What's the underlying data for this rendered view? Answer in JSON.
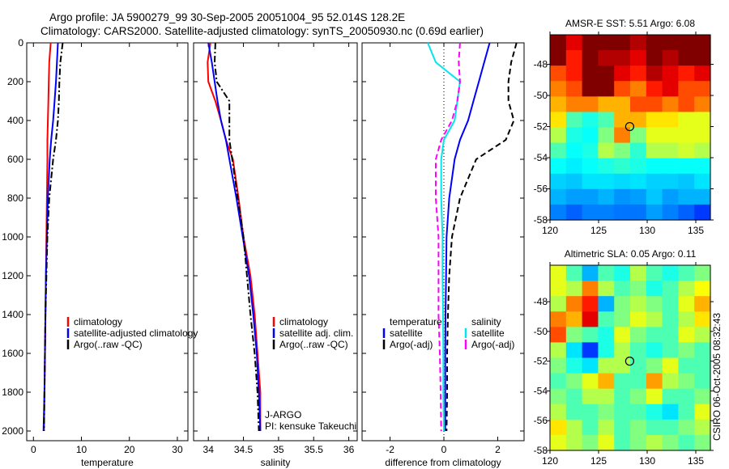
{
  "title": {
    "line1": "Argo profile: JA 5900279_99 30-Sep-2005 20051004_95 52.014S 128.2E",
    "line2": "Climatology: CARS2000. Satellite-adjusted climatology: synTS_20050930.nc (0.69d earlier)"
  },
  "footer_stamp": "CSIRO 06-Oct-2005 08:32:43",
  "colors": {
    "climatology": "#ff0000",
    "satellite": "#0000ff",
    "argo": "#000000",
    "sal_satellite": "#00e5ee",
    "sal_argo": "#ff00ff"
  },
  "chart_data": [
    {
      "type": "line",
      "xlabel": "temperature",
      "ylabel": "",
      "xlim": [
        -1.4,
        32.2
      ],
      "ylim": [
        0,
        2050
      ],
      "y_reversed": true,
      "xticks": [
        0,
        10,
        20,
        30
      ],
      "yticks": [
        0,
        200,
        400,
        600,
        800,
        1000,
        1200,
        1400,
        1600,
        1800,
        2000
      ],
      "depth": [
        0,
        100,
        200,
        300,
        400,
        500,
        600,
        800,
        1000,
        1200,
        1400,
        1600,
        1800,
        2000
      ],
      "series": [
        {
          "name": "climatology",
          "values": [
            3.6,
            3.3,
            3.2,
            3.1,
            3.0,
            2.9,
            2.9,
            2.8,
            2.7,
            2.6,
            2.5,
            2.4,
            2.3,
            2.2
          ]
        },
        {
          "name": "satellite-adjusted climatology",
          "values": [
            5.1,
            4.9,
            4.7,
            4.4,
            4.1,
            3.7,
            3.4,
            3.0,
            2.8,
            2.6,
            2.5,
            2.4,
            2.3,
            2.1
          ]
        },
        {
          "name": "Argo(..raw -QC)",
          "values": [
            6.1,
            5.6,
            5.4,
            5.3,
            5.1,
            4.7,
            4.1,
            3.3,
            2.9,
            2.7,
            2.5,
            2.4,
            2.3,
            2.2
          ]
        }
      ],
      "legend": [
        "climatology",
        "satellite-adjusted climatology",
        "Argo(..raw -QC)"
      ]
    },
    {
      "type": "line",
      "xlabel": "salinity",
      "xlim": [
        33.79,
        36.12
      ],
      "ylim": [
        0,
        2050
      ],
      "y_reversed": true,
      "xticks": [
        34,
        34.5,
        35,
        35.5,
        36
      ],
      "depth": [
        0,
        100,
        200,
        300,
        400,
        500,
        600,
        800,
        1000,
        1200,
        1400,
        1600,
        1800,
        2000
      ],
      "series": [
        {
          "name": "climatology",
          "values": [
            34.03,
            33.99,
            34.0,
            34.1,
            34.18,
            34.25,
            34.35,
            34.43,
            34.5,
            34.6,
            34.66,
            34.7,
            34.74,
            34.74
          ]
        },
        {
          "name": "satellite adj. clim.",
          "values": [
            34.0,
            34.05,
            34.09,
            34.13,
            34.18,
            34.25,
            34.3,
            34.4,
            34.49,
            34.58,
            34.64,
            34.69,
            34.72,
            34.74
          ]
        },
        {
          "name": "Argo(..raw -QC)",
          "values": [
            34.1,
            34.09,
            34.12,
            34.3,
            34.3,
            34.3,
            34.34,
            34.42,
            34.5,
            34.55,
            34.6,
            34.66,
            34.7,
            34.72
          ]
        }
      ],
      "legend": [
        "climatology",
        "satellite adj. clim.",
        "Argo(..raw -QC)"
      ],
      "annotations": [
        "J-ARGO",
        "PI: kensuke Takeuchi"
      ]
    },
    {
      "type": "line",
      "xlabel": "difference from climatology",
      "xlim": [
        -3.04,
        2.98
      ],
      "ylim": [
        0,
        2050
      ],
      "y_reversed": true,
      "xticks": [
        -2,
        0,
        2
      ],
      "depth": [
        0,
        100,
        200,
        300,
        400,
        500,
        600,
        800,
        1000,
        1200,
        1400,
        1600,
        1800,
        2000
      ],
      "series": [
        {
          "name": "temperature satellite",
          "values": [
            1.7,
            1.5,
            1.3,
            1.1,
            0.9,
            0.6,
            0.4,
            0.2,
            0.1,
            0.08,
            0.06,
            0.05,
            0.05,
            0.05
          ]
        },
        {
          "name": "temperature Argo(-adj)",
          "values": [
            2.7,
            2.5,
            2.4,
            2.4,
            2.6,
            2.3,
            1.2,
            0.6,
            0.3,
            0.2,
            0.15,
            0.12,
            0.12,
            0.1
          ]
        },
        {
          "name": "salinity satellite",
          "values": [
            -0.6,
            -0.3,
            0.6,
            0.5,
            0.4,
            0.0,
            -0.1,
            -0.1,
            -0.05,
            -0.05,
            -0.03,
            -0.02,
            -0.02,
            0.0
          ]
        },
        {
          "name": "salinity Argo(-adj)",
          "values": [
            0.6,
            0.55,
            0.6,
            0.5,
            0.3,
            -0.1,
            -0.3,
            -0.3,
            -0.2,
            -0.2,
            -0.2,
            -0.15,
            -0.12,
            -0.1
          ]
        }
      ],
      "legend_headers": [
        "temperature",
        "salinity"
      ],
      "legend": [
        "satellite",
        "Argo(-adj)",
        "satellite",
        "Argo(-adj)"
      ]
    },
    {
      "type": "heatmap",
      "title": "AMSR-E SST: 5.51 Argo: 6.08",
      "xlim": [
        120,
        136.5
      ],
      "ylim": [
        -58,
        -46.1
      ],
      "xticks": [
        120,
        125,
        130,
        135
      ],
      "yticks": [
        -48,
        -50,
        -52,
        -54,
        -56,
        -58
      ],
      "marker": {
        "lon": 128.2,
        "lat": -52.0
      },
      "grid_normalized": [
        [
          1,
          0.9,
          1,
          1,
          1,
          0.95,
          1,
          1,
          1,
          1
        ],
        [
          1,
          0.85,
          1,
          0.95,
          0.95,
          0.9,
          1,
          0.95,
          1,
          1
        ],
        [
          0.8,
          0.85,
          1,
          1,
          0.9,
          0.85,
          0.95,
          0.9,
          0.85,
          0.9
        ],
        [
          0.75,
          0.8,
          1,
          1,
          0.8,
          0.75,
          0.85,
          0.9,
          0.8,
          0.8
        ],
        [
          0.7,
          0.75,
          0.75,
          0.7,
          0.7,
          0.8,
          0.8,
          0.75,
          0.8,
          0.75
        ],
        [
          0.65,
          0.45,
          0.4,
          0.45,
          0.7,
          0.7,
          0.65,
          0.65,
          0.6,
          0.6
        ],
        [
          0.55,
          0.4,
          0.38,
          0.5,
          0.75,
          0.5,
          0.6,
          0.6,
          0.6,
          0.6
        ],
        [
          0.45,
          0.38,
          0.4,
          0.55,
          0.5,
          0.42,
          0.55,
          0.55,
          0.58,
          0.55
        ],
        [
          0.38,
          0.36,
          0.38,
          0.4,
          0.42,
          0.4,
          0.38,
          0.38,
          0.38,
          0.38
        ],
        [
          0.33,
          0.32,
          0.35,
          0.35,
          0.34,
          0.35,
          0.33,
          0.33,
          0.32,
          0.35
        ],
        [
          0.3,
          0.28,
          0.28,
          0.3,
          0.27,
          0.28,
          0.32,
          0.28,
          0.3,
          0.3
        ],
        [
          0.25,
          0.22,
          0.25,
          0.25,
          0.24,
          0.24,
          0.28,
          0.25,
          0.22,
          0.18
        ]
      ]
    },
    {
      "type": "heatmap",
      "title": "Altimetric SLA: 0.05 Argo: 0.11",
      "xlim": [
        120,
        136.5
      ],
      "ylim": [
        -58,
        -45.55
      ],
      "xticks": [
        120,
        125,
        130,
        135
      ],
      "yticks": [
        -48,
        -50,
        -52,
        -54,
        -56,
        -58
      ],
      "marker": {
        "lon": 128.2,
        "lat": -52.0
      },
      "grid_normalized": [
        [
          0.6,
          0.45,
          0.3,
          0.45,
          0.4,
          0.55,
          0.45,
          0.4,
          0.45,
          0.5
        ],
        [
          0.6,
          0.55,
          0.75,
          0.55,
          0.45,
          0.5,
          0.4,
          0.45,
          0.55,
          0.62
        ],
        [
          0.55,
          0.75,
          0.85,
          0.3,
          0.5,
          0.55,
          0.5,
          0.45,
          0.6,
          0.7
        ],
        [
          0.75,
          0.7,
          0.9,
          0.45,
          0.5,
          0.6,
          0.55,
          0.45,
          0.55,
          0.65
        ],
        [
          0.8,
          0.5,
          0.45,
          0.4,
          0.6,
          0.5,
          0.45,
          0.45,
          0.6,
          0.55
        ],
        [
          0.55,
          0.35,
          0.18,
          0.4,
          0.55,
          0.45,
          0.4,
          0.45,
          0.5,
          0.45
        ],
        [
          0.5,
          0.4,
          0.35,
          0.55,
          0.55,
          0.45,
          0.5,
          0.6,
          0.45,
          0.45
        ],
        [
          0.45,
          0.5,
          0.6,
          0.7,
          0.45,
          0.45,
          0.72,
          0.55,
          0.5,
          0.45
        ],
        [
          0.5,
          0.45,
          0.55,
          0.55,
          0.45,
          0.5,
          0.6,
          0.45,
          0.45,
          0.5
        ],
        [
          0.55,
          0.45,
          0.45,
          0.5,
          0.45,
          0.45,
          0.4,
          0.35,
          0.45,
          0.6
        ],
        [
          0.65,
          0.55,
          0.45,
          0.55,
          0.45,
          0.5,
          0.45,
          0.45,
          0.5,
          0.55
        ],
        [
          0.6,
          0.55,
          0.5,
          0.6,
          0.45,
          0.5,
          0.55,
          0.5,
          0.45,
          0.5
        ]
      ]
    }
  ]
}
